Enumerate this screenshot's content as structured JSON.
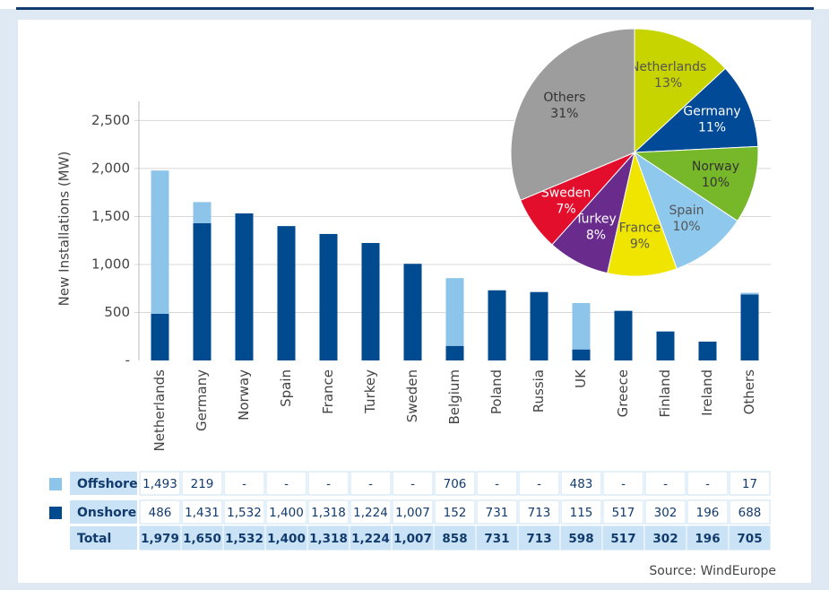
{
  "chart_data": [
    {
      "type": "bar",
      "stacked": true,
      "ylabel": "New Installations (MW)",
      "categories": [
        "Netherlands",
        "Germany",
        "Norway",
        "Spain",
        "France",
        "Turkey",
        "Sweden",
        "Belgium",
        "Poland",
        "Russia",
        "UK",
        "Greece",
        "Finland",
        "Ireland",
        "Others"
      ],
      "series": [
        {
          "name": "Onshore",
          "color": "#004a8f",
          "values": [
            486,
            1431,
            1532,
            1400,
            1318,
            1224,
            1007,
            152,
            731,
            713,
            115,
            517,
            302,
            196,
            688
          ],
          "value_labels": [
            "486",
            "1,431",
            "1,532",
            "1,400",
            "1,318",
            "1,224",
            "1,007",
            "152",
            "731",
            "713",
            "115",
            "517",
            "302",
            "196",
            "688"
          ]
        },
        {
          "name": "Offshore",
          "color": "#8cc4ea",
          "values": [
            1493,
            219,
            0,
            0,
            0,
            0,
            0,
            706,
            0,
            0,
            483,
            0,
            0,
            0,
            17
          ],
          "value_labels": [
            "1,493",
            "219",
            "-",
            "-",
            "-",
            "-",
            "-",
            "706",
            "-",
            "-",
            "483",
            "-",
            "-",
            "-",
            "17"
          ]
        }
      ],
      "total_name": "Total",
      "totals": [
        1979,
        1650,
        1532,
        1400,
        1318,
        1224,
        1007,
        858,
        731,
        713,
        598,
        517,
        302,
        196,
        705
      ],
      "total_labels": [
        "1,979",
        "1,650",
        "1,532",
        "1,400",
        "1,318",
        "1,224",
        "1,007",
        "858",
        "731",
        "713",
        "598",
        "517",
        "302",
        "196",
        "705"
      ],
      "ylim": [
        0,
        2700
      ],
      "yticks": [
        {
          "value": 0,
          "label": "-"
        },
        500,
        {
          "value": 1000,
          "label": "1,000"
        },
        {
          "value": 1500,
          "label": "1,500"
        },
        {
          "value": 2000,
          "label": "2,000"
        },
        {
          "value": 2500,
          "label": "2,500"
        }
      ],
      "grid": true,
      "source": "Source: WindEurope"
    },
    {
      "type": "pie",
      "categories": [
        "Netherlands",
        "Germany",
        "Norway",
        "Spain",
        "France",
        "Turkey",
        "Sweden",
        "Others"
      ],
      "values": [
        13,
        11,
        10,
        10,
        9,
        8,
        7,
        31
      ],
      "value_labels": [
        "13%",
        "11%",
        "10%",
        "10%",
        "9%",
        "8%",
        "7%",
        "31%"
      ],
      "colors": [
        "#c8d400",
        "#004a97",
        "#76b82a",
        "#8ec8ec",
        "#f0e500",
        "#6a2c8c",
        "#e30d2c",
        "#9d9d9d"
      ]
    }
  ]
}
